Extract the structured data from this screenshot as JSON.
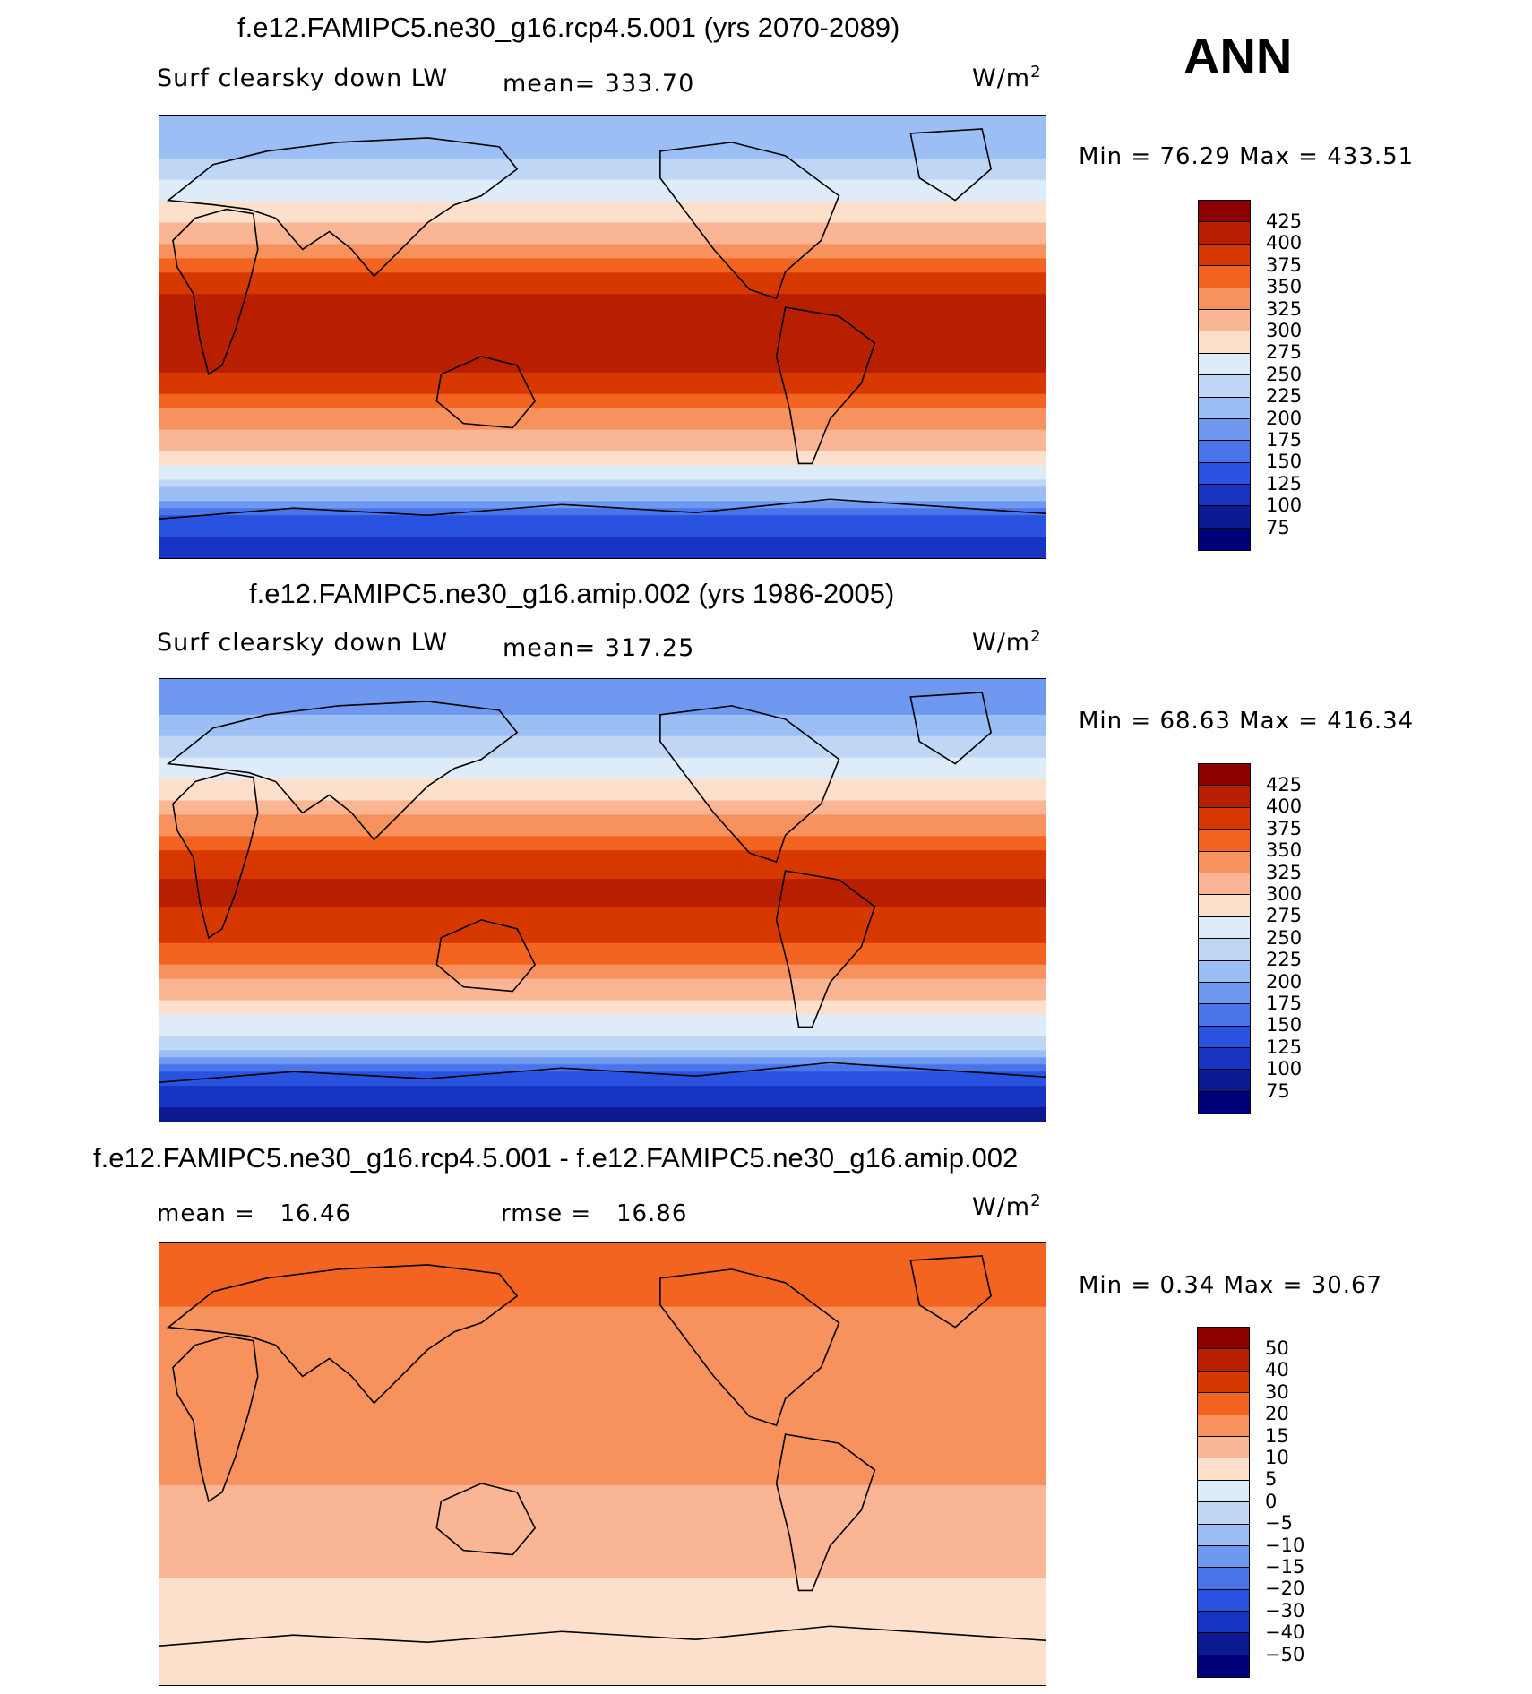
{
  "season": "ANN",
  "panels": [
    {
      "title": "f.e12.FAMIPC5.ne30_g16.rcp4.5.001 (yrs 2070-2089)",
      "variable": "Surf clearsky down LW",
      "mean_label": "mean=",
      "mean_value": "333.70",
      "units": "W/m",
      "units_exp": "2",
      "minmax": "Min =   76.29  Max =  433.51"
    },
    {
      "title": "f.e12.FAMIPC5.ne30_g16.amip.002 (yrs 1986-2005)",
      "variable": "Surf clearsky down LW",
      "mean_label": "mean=",
      "mean_value": "317.25",
      "units": "W/m",
      "units_exp": "2",
      "minmax": "Min =   68.63  Max =  416.34"
    },
    {
      "title": "f.e12.FAMIPC5.ne30_g16.rcp4.5.001 - f.e12.FAMIPC5.ne30_g16.amip.002",
      "mean_label": "mean =",
      "mean_value": "16.46",
      "rmse_label": "rmse =",
      "rmse_value": "16.86",
      "units": "W/m",
      "units_exp": "2",
      "minmax": "Min =    0.34  Max =   30.67"
    }
  ],
  "chart_data": [
    {
      "type": "heatmap",
      "title": "f.e12.FAMIPC5.ne30_g16.rcp4.5.001 (yrs 2070-2089)",
      "variable": "Surf clearsky down LW",
      "units": "W/m^2",
      "mean": 333.7,
      "min": 76.29,
      "max": 433.51,
      "colorbar_levels": [
        425,
        400,
        375,
        350,
        325,
        300,
        275,
        250,
        225,
        200,
        175,
        150,
        125,
        100,
        75
      ],
      "zonal_profile": {
        "lat": [
          90,
          75,
          60,
          45,
          30,
          15,
          0,
          -15,
          -30,
          -45,
          -60,
          -75,
          -90
        ],
        "value": [
          210,
          220,
          260,
          300,
          360,
          410,
          420,
          400,
          350,
          300,
          240,
          140,
          110
        ]
      }
    },
    {
      "type": "heatmap",
      "title": "f.e12.FAMIPC5.ne30_g16.amip.002 (yrs 1986-2005)",
      "variable": "Surf clearsky down LW",
      "units": "W/m^2",
      "mean": 317.25,
      "min": 68.63,
      "max": 416.34,
      "colorbar_levels": [
        425,
        400,
        375,
        350,
        325,
        300,
        275,
        250,
        225,
        200,
        175,
        150,
        125,
        100,
        75
      ],
      "zonal_profile": {
        "lat": [
          90,
          75,
          60,
          45,
          30,
          15,
          0,
          -15,
          -30,
          -45,
          -60,
          -75,
          -90
        ],
        "value": [
          190,
          200,
          240,
          285,
          340,
          395,
          405,
          385,
          335,
          285,
          225,
          120,
          90
        ]
      }
    },
    {
      "type": "heatmap",
      "title": "f.e12.FAMIPC5.ne30_g16.rcp4.5.001 - f.e12.FAMIPC5.ne30_g16.amip.002",
      "units": "W/m^2",
      "mean": 16.46,
      "rmse": 16.86,
      "min": 0.34,
      "max": 30.67,
      "colorbar_levels": [
        50,
        40,
        30,
        20,
        15,
        10,
        5,
        0,
        -5,
        -10,
        -15,
        -20,
        -30,
        -40,
        -50
      ],
      "zonal_profile": {
        "lat": [
          90,
          75,
          60,
          45,
          30,
          15,
          0,
          -15,
          -30,
          -45,
          -60,
          -75,
          -90
        ],
        "value": [
          20,
          22,
          19,
          17,
          16,
          16,
          16,
          14,
          12,
          10,
          9,
          8,
          8
        ]
      }
    }
  ],
  "colors": {
    "abs_scale": [
      "#8c0000",
      "#b81e00",
      "#d63800",
      "#f2641f",
      "#f7925e",
      "#fab594",
      "#fde0cc",
      "#deecfa",
      "#c0d6f5",
      "#9bbef5",
      "#6f98f0",
      "#4a75ea",
      "#2a52e0",
      "#1734c2",
      "#0b1a91",
      "#00007a"
    ],
    "diff_scale": [
      "#8c0000",
      "#b81e00",
      "#d63800",
      "#f2641f",
      "#f7925e",
      "#fab594",
      "#fde0cc",
      "#ffffff",
      "#deecfa",
      "#c0d6f5",
      "#9bbef5",
      "#6f98f0",
      "#4a75ea",
      "#2a52e0",
      "#1734c2",
      "#0b1a91",
      "#00007a"
    ]
  }
}
